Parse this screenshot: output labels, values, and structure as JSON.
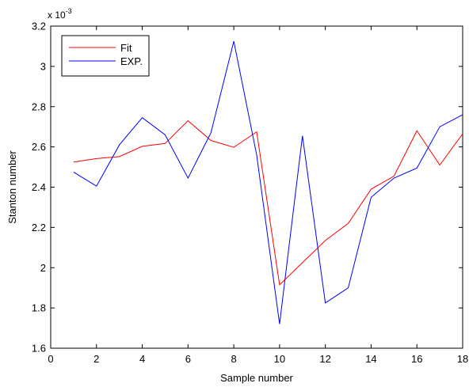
{
  "chart_data": {
    "type": "line",
    "title": "",
    "xlabel": "Sample  number",
    "ylabel": "Stanton number",
    "y_exponent_label": "x 10",
    "y_exponent_power": "-3",
    "xlim": [
      0,
      18
    ],
    "ylim": [
      1.6,
      3.2
    ],
    "x_ticks": [
      0,
      2,
      4,
      6,
      8,
      10,
      12,
      14,
      16,
      18
    ],
    "x_tick_labels": [
      "0",
      "2",
      "4",
      "6",
      "8",
      "10",
      "12",
      "14",
      "16",
      "18"
    ],
    "y_ticks": [
      1.6,
      1.8,
      2.0,
      2.2,
      2.4,
      2.6,
      2.8,
      3.0,
      3.2
    ],
    "y_tick_labels": [
      "1.6",
      "1.8",
      "2",
      "2.2",
      "2.4",
      "2.6",
      "2.8",
      "3",
      "3.2"
    ],
    "grid": false,
    "legend_position": "top-left",
    "x": [
      1,
      2,
      3,
      4,
      5,
      6,
      7,
      8,
      9,
      10,
      11,
      12,
      13,
      14,
      15,
      16,
      17,
      18
    ],
    "series": [
      {
        "name": "Fit",
        "color": "#ff0000",
        "values": [
          2.525,
          2.542,
          2.552,
          2.603,
          2.617,
          2.73,
          2.632,
          2.598,
          2.675,
          1.915,
          2.025,
          2.135,
          2.22,
          2.39,
          2.455,
          2.68,
          2.51,
          2.665
        ]
      },
      {
        "name": "EXP.",
        "color": "#0000ff",
        "values": [
          2.475,
          2.405,
          2.61,
          2.745,
          2.66,
          2.445,
          2.67,
          3.125,
          2.56,
          1.72,
          2.655,
          1.825,
          1.9,
          2.35,
          2.445,
          2.495,
          2.7,
          2.76
        ]
      }
    ]
  }
}
